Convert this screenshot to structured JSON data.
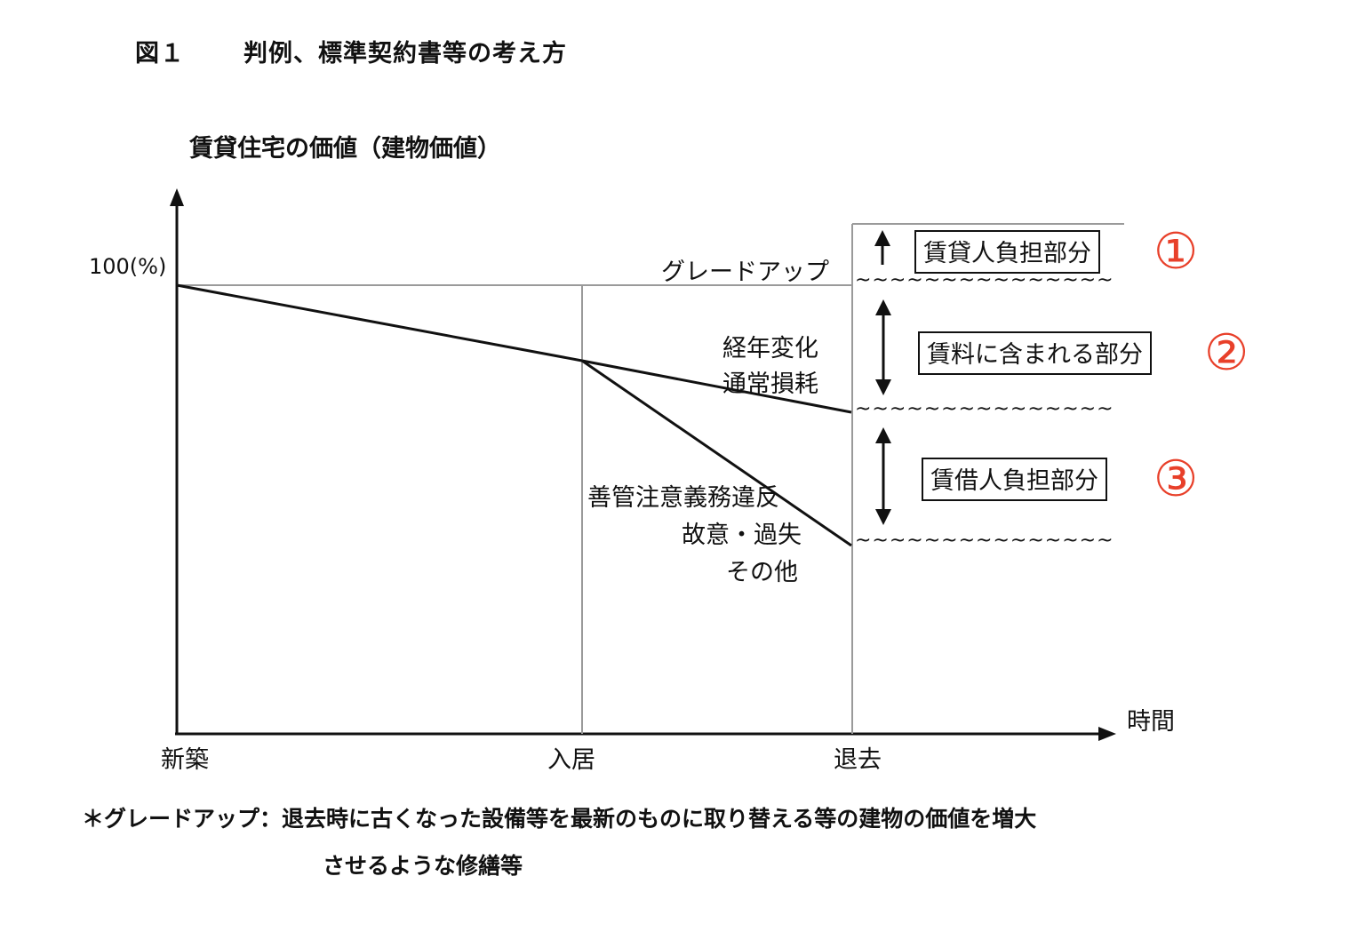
{
  "figure": {
    "number": "図１",
    "title": "判例、標準契約書等の考え方"
  },
  "y_axis": {
    "title": "賃貸住宅の価値（建物価値）",
    "tick_100": "100(%)"
  },
  "x_axis": {
    "title": "時間",
    "tick_new": "新築",
    "tick_movein": "入居",
    "tick_moveout": "退去"
  },
  "labels": {
    "gradeup": "グレードアップ",
    "aging_1": "経年変化",
    "aging_2": "通常損耗",
    "breach_1": "善管注意義務違反",
    "breach_2": "故意・過失",
    "breach_3": "その他",
    "tilde_row": "~~~~~~~~~~~~~~~"
  },
  "boxes": {
    "landlord": "賃貸人負担部分",
    "rent": "賃料に含まれる部分",
    "tenant": "賃借人負担部分"
  },
  "markers": {
    "one": "①",
    "two": "②",
    "three": "③"
  },
  "footnote": {
    "line1": "＊グレードアップ：退去時に古くなった設備等を最新のものに取り替える等の建物の価値を増大",
    "line2": "させるような修繕等"
  },
  "colors": {
    "marker": "#e8402a",
    "axis": "#111111",
    "grid": "#9a9a9a"
  }
}
